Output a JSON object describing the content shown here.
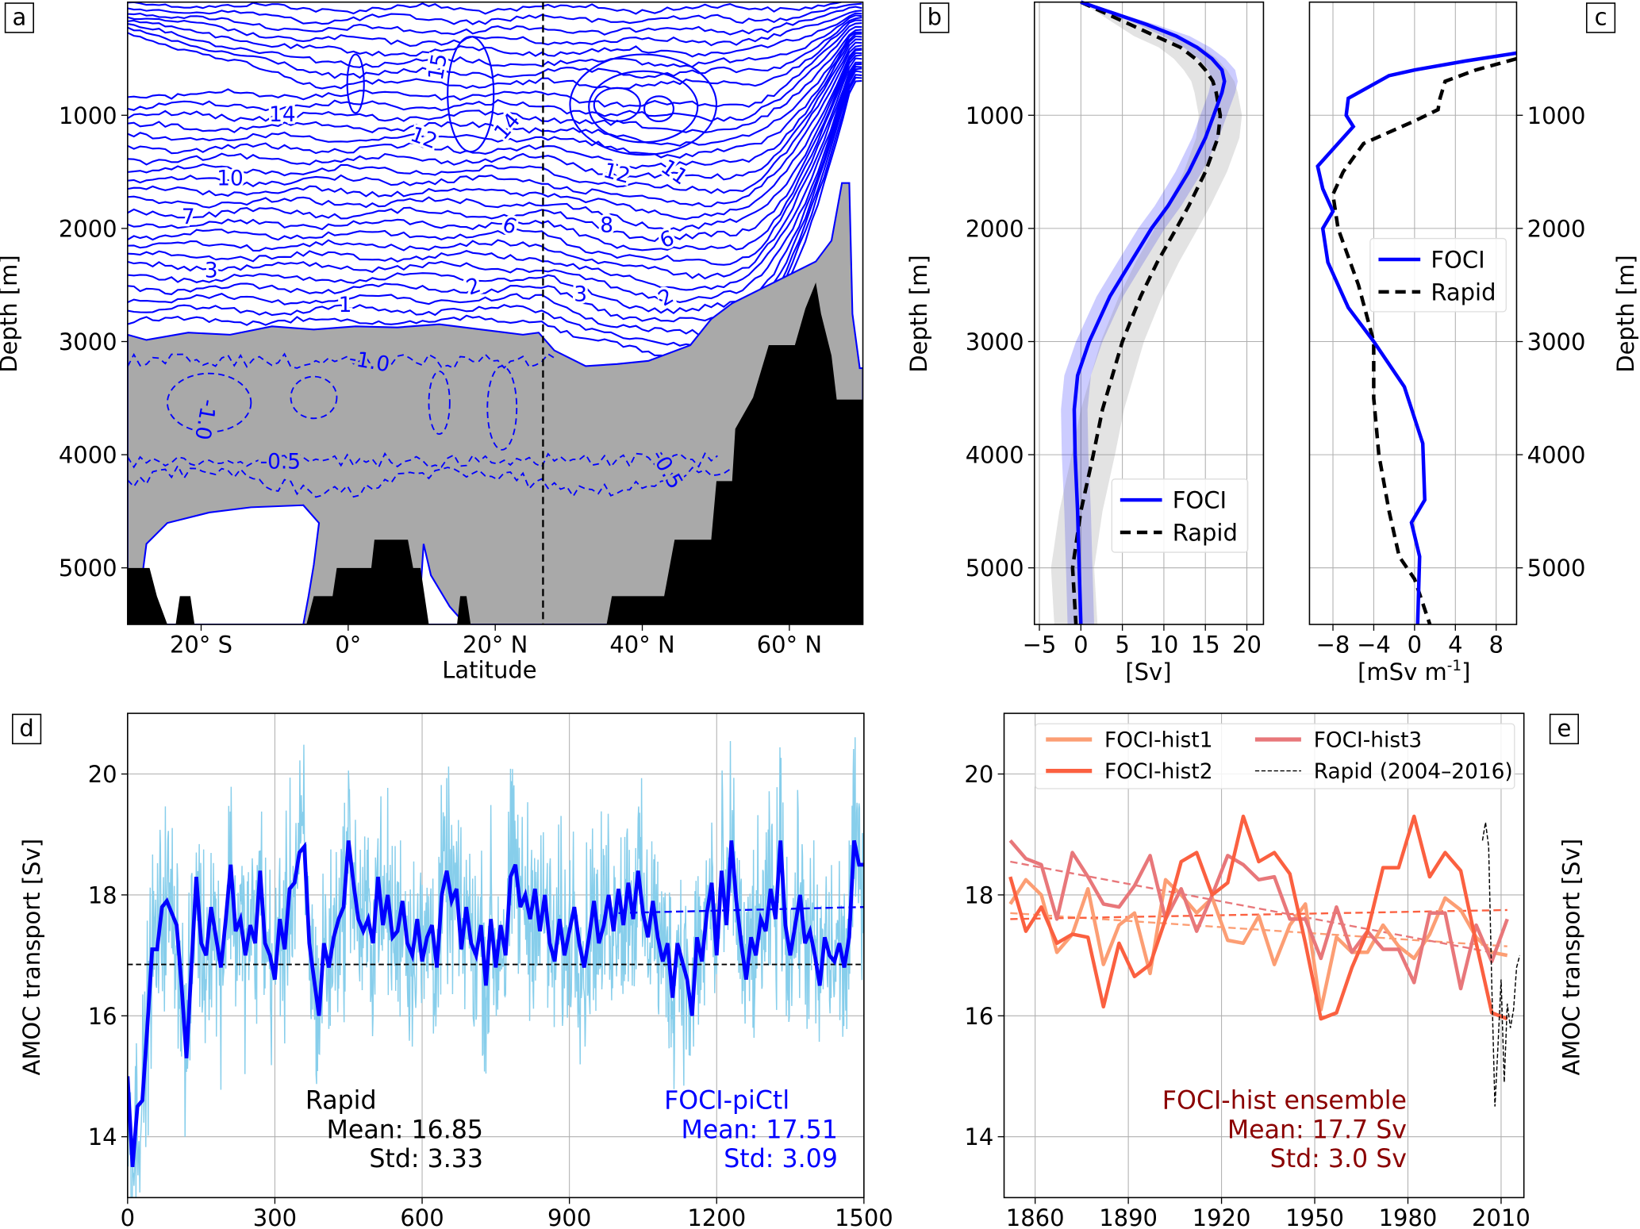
{
  "panel_labels": [
    "a",
    "b",
    "c",
    "d",
    "e"
  ],
  "chart_data": [
    {
      "id": "a",
      "type": "heatmap",
      "title": "",
      "xlabel": "Latitude",
      "ylabel": "Depth  [m]",
      "xlim": [
        -30,
        70
      ],
      "ylim": [
        5500,
        0
      ],
      "xticks": [
        -20,
        0,
        20,
        40,
        60
      ],
      "xtick_labels": [
        "20° S",
        "0°",
        "20° N",
        "40° N",
        "60° N"
      ],
      "yticks": [
        1000,
        2000,
        3000,
        4000,
        5000
      ],
      "ytick_labels": [
        "1000",
        "2000",
        "3000",
        "4000",
        "5000"
      ],
      "rapid_section_latitude": 26.5,
      "contour_labels": [
        "14",
        "12",
        "10",
        "7",
        "3",
        "1",
        "15",
        "6",
        "2",
        "14",
        "12",
        "11",
        "8",
        "6",
        "3",
        "2",
        "-1.0",
        "-1.0",
        "-0.5",
        "-0.5"
      ],
      "colors": {
        "contour": "#0000ff",
        "negative_fill": "#a9a9a9",
        "bathymetry": "#000000"
      }
    },
    {
      "id": "b",
      "type": "line",
      "xlabel": "[Sv]",
      "ylabel": "Depth [m]",
      "xlim": [
        -5.6,
        22
      ],
      "ylim": [
        5500,
        0
      ],
      "xticks": [
        -5,
        0,
        5,
        10,
        15,
        20
      ],
      "xtick_labels": [
        "−5",
        "0",
        "5",
        "10",
        "15",
        "20"
      ],
      "yticks": [
        1000,
        2000,
        3000,
        4000,
        5000
      ],
      "ytick_labels": [
        "1000",
        "2000",
        "3000",
        "4000",
        "5000"
      ],
      "grid": true,
      "legend": {
        "position": "lower-right",
        "entries": [
          "FOCI",
          "Rapid"
        ]
      },
      "series": [
        {
          "name": "FOCI",
          "color": "#0000ff",
          "style": "solid",
          "band": 1.6,
          "depth": [
            0,
            100,
            200,
            300,
            400,
            500,
            600,
            700,
            800,
            1000,
            1200,
            1500,
            1800,
            2000,
            2300,
            2600,
            3000,
            3300,
            3600,
            4000,
            4500,
            5000,
            5500
          ],
          "values": [
            0,
            4,
            8,
            11.5,
            14,
            15.8,
            17,
            17.3,
            17,
            16,
            15,
            13,
            10.5,
            8.5,
            6,
            3.5,
            1,
            -0.4,
            -0.8,
            -0.7,
            -0.4,
            -0.2,
            0
          ]
        },
        {
          "name": "Rapid",
          "color": "#000000",
          "style": "dashed",
          "band": 2.6,
          "depth": [
            0,
            100,
            200,
            300,
            400,
            500,
            600,
            700,
            800,
            1000,
            1200,
            1500,
            1800,
            2000,
            2300,
            2600,
            3000,
            3300,
            3600,
            4000,
            4500,
            5000,
            5500
          ],
          "values": [
            0,
            3,
            6,
            9,
            12,
            13.8,
            15,
            15.9,
            16.3,
            16.8,
            16.5,
            15,
            13,
            11.5,
            9.2,
            7.2,
            5,
            3.8,
            2.6,
            1.5,
            0,
            -1,
            -0.6
          ]
        }
      ]
    },
    {
      "id": "c",
      "type": "line",
      "xlabel": "[mSv m",
      "xlabel_sup": "-1",
      "xlabel_end": "]",
      "ylabel": "Depth [m]",
      "xlim": [
        -10.3,
        10
      ],
      "ylim": [
        5500,
        0
      ],
      "xticks": [
        -8,
        -4,
        0,
        4,
        8
      ],
      "xtick_labels": [
        "−8",
        "−4",
        "0",
        "4",
        "8"
      ],
      "yticks": [
        1000,
        2000,
        3000,
        4000,
        5000
      ],
      "ytick_labels": [
        "1000",
        "2000",
        "3000",
        "4000",
        "5000"
      ],
      "grid": true,
      "legend": {
        "position": "center-right",
        "entries": [
          "FOCI",
          "Rapid"
        ]
      },
      "series": [
        {
          "name": "FOCI",
          "color": "#0000ff",
          "style": "solid",
          "depth": [
            450,
            520,
            600,
            650,
            850,
            1000,
            1100,
            1250,
            1450,
            1650,
            1850,
            2000,
            2300,
            2700,
            3000,
            3400,
            3900,
            4400,
            4600,
            4900,
            5500
          ],
          "values": [
            10,
            5,
            0,
            -2.5,
            -6.5,
            -6.7,
            -6,
            -7.5,
            -9.5,
            -9,
            -8,
            -9,
            -8.5,
            -6.5,
            -4,
            -1,
            0.8,
            1,
            -0.3,
            0.5,
            0.3
          ]
        },
        {
          "name": "Rapid",
          "color": "#000000",
          "style": "dashed",
          "depth": [
            500,
            600,
            700,
            850,
            950,
            1050,
            1250,
            1500,
            1700,
            2000,
            2500,
            3000,
            3500,
            4000,
            4500,
            4900,
            5100,
            5500
          ],
          "values": [
            10,
            6,
            3,
            2.5,
            2.3,
            0,
            -5,
            -7,
            -8,
            -7.5,
            -5.5,
            -4,
            -4,
            -3.5,
            -2.5,
            -1.5,
            0,
            1.5
          ]
        }
      ]
    },
    {
      "id": "d",
      "type": "line",
      "xlabel": "",
      "ylabel": "AMOC transport  [Sv]",
      "xlim": [
        0,
        1500
      ],
      "ylim": [
        13,
        21
      ],
      "xticks": [
        0,
        300,
        600,
        900,
        1200,
        1500
      ],
      "xtick_labels": [
        "0",
        "300",
        "600",
        "900",
        "1200",
        "1500"
      ],
      "yticks": [
        14,
        16,
        18,
        20
      ],
      "ytick_labels": [
        "14",
        "16",
        "18",
        "20"
      ],
      "grid": true,
      "rapid_mean_line": 16.85,
      "trend": {
        "x": [
          1000,
          1500
        ],
        "y": [
          17.7,
          17.8
        ]
      },
      "colors": {
        "annual": "#87ceeb",
        "smoothed": "#0000ff"
      },
      "smoothed": {
        "x_start": 0,
        "x_step": 10,
        "values": [
          15.0,
          13.5,
          14.5,
          14.6,
          15.8,
          17.1,
          17.1,
          17.8,
          17.9,
          17.7,
          17.5,
          16.5,
          15.3,
          16.8,
          18.3,
          17.2,
          17.0,
          17.8,
          17.3,
          16.8,
          17.6,
          18.5,
          17.4,
          17.6,
          17.0,
          17.5,
          17.2,
          18.4,
          17.2,
          17.0,
          16.6,
          17.6,
          17.1,
          18.1,
          18.2,
          18.7,
          18.8,
          17.2,
          16.6,
          16.0,
          17.2,
          16.8,
          17.3,
          17.6,
          17.8,
          18.9,
          18.2,
          17.6,
          17.4,
          17.6,
          17.2,
          18.3,
          17.5,
          18.0,
          17.3,
          17.4,
          17.9,
          17.2,
          17.0,
          17.6,
          16.9,
          17.3,
          17.5,
          16.8,
          18.0,
          18.4,
          17.9,
          18.1,
          17.1,
          17.8,
          17.2,
          17.0,
          17.5,
          16.5,
          17.6,
          16.8,
          17.5,
          17.0,
          18.3,
          18.5,
          17.8,
          18.0,
          17.6,
          18.1,
          17.4,
          18.0,
          17.2,
          16.9,
          17.6,
          17.0,
          17.4,
          17.8,
          17.2,
          16.8,
          17.3,
          17.9,
          17.2,
          17.5,
          18.0,
          17.4,
          18.1,
          17.5,
          18.2,
          17.6,
          18.4,
          17.7,
          17.3,
          17.9,
          17.3,
          16.9,
          17.2,
          16.3,
          17.2,
          16.9,
          16.6,
          16.0,
          17.3,
          16.9,
          17.7,
          18.2,
          17.0,
          18.4,
          17.5,
          18.9,
          17.9,
          17.2,
          16.6,
          17.3,
          17.0,
          17.6,
          17.4,
          18.1,
          17.6,
          18.9,
          17.5,
          17.0,
          17.5,
          18.0,
          17.2,
          17.4,
          17.0,
          16.5,
          17.3,
          17.0,
          16.9,
          17.2,
          16.8,
          17.3,
          18.9,
          18.5,
          18.5
        ]
      },
      "annotations": {
        "rapid": {
          "title": "Rapid",
          "mean": "Mean:  16.85",
          "std": "Std:     3.33"
        },
        "foci": {
          "title": "FOCI-piCtl",
          "mean": "Mean:  17.51",
          "std": "Std:     3.09"
        }
      }
    },
    {
      "id": "e",
      "type": "line",
      "xlabel": "",
      "ylabel": "AMOC transport  [Sv]",
      "xlim": [
        1850,
        2017
      ],
      "ylim": [
        13,
        21
      ],
      "xticks": [
        1860,
        1890,
        1920,
        1950,
        1980,
        2010
      ],
      "xtick_labels": [
        "1860",
        "1890",
        "1920",
        "1950",
        "1980",
        "2010"
      ],
      "yticks": [
        14,
        16,
        18,
        20
      ],
      "ytick_labels": [
        "14",
        "16",
        "18",
        "20"
      ],
      "grid": true,
      "legend": {
        "position": "top",
        "entries": [
          "FOCI-hist1",
          "FOCI-hist2",
          "FOCI-hist3",
          "Rapid (2004–2016)"
        ]
      },
      "x": [
        1852,
        1857,
        1862,
        1867,
        1872,
        1877,
        1882,
        1887,
        1892,
        1897,
        1902,
        1907,
        1912,
        1917,
        1922,
        1927,
        1932,
        1937,
        1942,
        1947,
        1952,
        1957,
        1962,
        1967,
        1972,
        1977,
        1982,
        1987,
        1992,
        1997,
        2002,
        2007,
        2012
      ],
      "series": [
        {
          "name": "FOCI-hist1",
          "color": "#fc9e74",
          "trend": [
            17.7,
            17.15
          ],
          "values": [
            17.85,
            18.25,
            18.0,
            17.05,
            17.35,
            18.1,
            16.85,
            17.5,
            17.7,
            16.7,
            18.25,
            18.0,
            17.7,
            17.95,
            17.25,
            17.2,
            17.65,
            16.85,
            17.5,
            17.85,
            16.1,
            17.3,
            17.05,
            17.05,
            17.5,
            17.15,
            16.95,
            17.35,
            17.95,
            17.75,
            17.3,
            17.05,
            17.0
          ]
        },
        {
          "name": "FOCI-hist2",
          "color": "#fb6040",
          "trend": [
            17.6,
            17.75
          ],
          "values": [
            18.3,
            17.4,
            17.8,
            17.2,
            17.35,
            17.3,
            16.15,
            17.2,
            16.65,
            16.85,
            17.6,
            18.55,
            18.7,
            18.0,
            18.2,
            19.3,
            18.55,
            18.7,
            18.35,
            17.2,
            15.95,
            16.05,
            16.8,
            17.4,
            18.45,
            18.45,
            19.3,
            18.3,
            18.7,
            18.4,
            17.2,
            16.05,
            15.95
          ]
        },
        {
          "name": "FOCI-hist3",
          "color": "#e8777a",
          "trend": [
            18.55,
            17.0
          ],
          "values": [
            18.9,
            18.6,
            18.5,
            17.6,
            18.7,
            18.3,
            17.85,
            17.8,
            18.15,
            18.65,
            17.6,
            18.1,
            17.4,
            18.0,
            18.65,
            18.5,
            18.25,
            18.3,
            17.6,
            17.6,
            16.95,
            17.8,
            17.05,
            17.4,
            17.1,
            17.1,
            16.55,
            17.7,
            17.7,
            16.45,
            17.5,
            16.9,
            17.6
          ]
        },
        {
          "name": "Rapid (2004–2016)",
          "color": "#000000",
          "style": "dashed",
          "x": [
            2004,
            2005,
            2006,
            2007,
            2008,
            2009,
            2010,
            2011,
            2012,
            2013,
            2014,
            2015,
            2016
          ],
          "values": [
            18.9,
            19.2,
            18.8,
            16.5,
            14.5,
            15.5,
            16.6,
            14.9,
            16.2,
            15.8,
            16.1,
            16.8,
            17.0
          ]
        }
      ],
      "annotation": {
        "title": "FOCI-hist ensemble",
        "mean": "Mean:  17.7 Sv",
        "std": "Std:     3.0 Sv",
        "color": "#8b0000"
      }
    }
  ]
}
